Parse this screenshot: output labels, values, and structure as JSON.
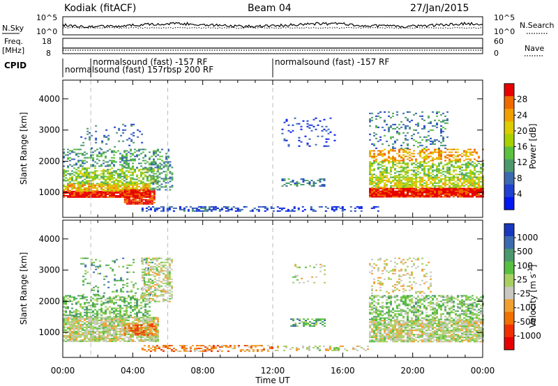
{
  "header": {
    "site": "Kodiak (fitACF)",
    "beam": "Beam 04",
    "date": "27/Jan/2015"
  },
  "summary": {
    "nsky_label": "N.Sky",
    "nsearch_label": "N.Search",
    "nsky_ticks": [
      "10^5",
      "10^0"
    ],
    "nsearch_ticks": [
      "10^5",
      "10^0"
    ],
    "freq_label": "Freq.",
    "freq_unit": "[MHz]",
    "freq_ticks": [
      "18",
      "8"
    ],
    "nave_label": "Nave",
    "nave_ticks": [
      "60",
      "0"
    ],
    "cpid_label": "CPID",
    "cpid_segments": [
      {
        "text": "normalsound (fast) 157rbsp 200 RF",
        "start_hour": 0.0
      },
      {
        "text": "normalsound (fast) -157 RF",
        "start_hour": 1.6
      },
      {
        "text": "normalsound (fast) -157 RF",
        "start_hour": 12.0
      }
    ]
  },
  "chart_data": [
    {
      "type": "heatmap",
      "name": "power-panel",
      "ylabel": "Slant Range [km]",
      "xlabel": "",
      "xlim": [
        0,
        24
      ],
      "ylim": [
        200,
        4600
      ],
      "yticks": [
        1000,
        2000,
        3000,
        4000
      ],
      "colorbar": {
        "label": "Power [dB]",
        "ticks": [
          "28",
          "24",
          "20",
          "16",
          "12",
          "8",
          "4"
        ],
        "colors": [
          "#e80000",
          "#f06a00",
          "#f0a000",
          "#dccc00",
          "#a8d000",
          "#5cc040",
          "#4c9a6c",
          "#3c6ab0",
          "#2040d0",
          "#0018f0"
        ]
      },
      "bands": [
        {
          "start": 0.0,
          "end": 5.0,
          "r0": 850,
          "r1": 1050,
          "v": 0.97,
          "d": 0.95
        },
        {
          "start": 0.0,
          "end": 5.0,
          "r0": 1050,
          "r1": 1300,
          "v": 0.7,
          "d": 0.85
        },
        {
          "start": 0.0,
          "end": 5.5,
          "r0": 1300,
          "r1": 1800,
          "v": 0.5,
          "d": 0.6
        },
        {
          "start": 0.0,
          "end": 6.0,
          "r0": 1800,
          "r1": 2400,
          "v": 0.35,
          "d": 0.35
        },
        {
          "start": 1.0,
          "end": 4.5,
          "r0": 2400,
          "r1": 3200,
          "v": 0.25,
          "d": 0.12
        },
        {
          "start": 3.5,
          "end": 5.2,
          "r0": 650,
          "r1": 1100,
          "v": 0.95,
          "d": 0.9
        },
        {
          "start": 5.0,
          "end": 6.2,
          "r0": 1100,
          "r1": 2000,
          "v": 0.35,
          "d": 0.4
        },
        {
          "start": 4.5,
          "end": 9.5,
          "r0": 400,
          "r1": 560,
          "v": 0.2,
          "d": 0.5
        },
        {
          "start": 9.0,
          "end": 18.0,
          "r0": 420,
          "r1": 560,
          "v": 0.15,
          "d": 0.35
        },
        {
          "start": 12.5,
          "end": 15.0,
          "r0": 1200,
          "r1": 1450,
          "v": 0.3,
          "d": 0.45
        },
        {
          "start": 12.5,
          "end": 15.5,
          "r0": 2500,
          "r1": 3400,
          "v": 0.15,
          "d": 0.12
        },
        {
          "start": 17.5,
          "end": 24.0,
          "r0": 850,
          "r1": 1150,
          "v": 0.95,
          "d": 0.95
        },
        {
          "start": 17.5,
          "end": 24.0,
          "r0": 1150,
          "r1": 1500,
          "v": 0.6,
          "d": 0.7
        },
        {
          "start": 17.5,
          "end": 24.0,
          "r0": 1500,
          "r1": 2000,
          "v": 0.5,
          "d": 0.55
        },
        {
          "start": 17.5,
          "end": 24.0,
          "r0": 2000,
          "r1": 2400,
          "v": 0.75,
          "d": 0.5
        },
        {
          "start": 17.5,
          "end": 22.0,
          "r0": 2400,
          "r1": 3600,
          "v": 0.3,
          "d": 0.2
        }
      ]
    },
    {
      "type": "heatmap",
      "name": "velocity-panel",
      "ylabel": "Slant Range [km]",
      "xlabel": "Time UT",
      "xlim": [
        0,
        24
      ],
      "ylim": [
        200,
        4600
      ],
      "yticks": [
        1000,
        2000,
        3000,
        4000
      ],
      "xticks": [
        "00:00",
        "04:00",
        "08:00",
        "12:00",
        "16:00",
        "20:00",
        "00:00"
      ],
      "xtick_hours": [
        0,
        4,
        8,
        12,
        16,
        20,
        24
      ],
      "colorbar": {
        "label": "Velocity [m s^-1]",
        "ticks": [
          "1000",
          "500",
          "100",
          "25",
          "-25",
          "-100",
          "-500",
          "-1000"
        ],
        "colors": [
          "#1838c0",
          "#3c6ab0",
          "#4c9a6c",
          "#58c040",
          "#a8d060",
          "#c8c8c0",
          "#f0a030",
          "#f07000",
          "#f03000",
          "#e80000"
        ]
      },
      "bands": [
        {
          "start": 0.0,
          "end": 5.5,
          "r0": 700,
          "r1": 1500,
          "v": 0.5,
          "d": 0.85
        },
        {
          "start": 0.0,
          "end": 5.0,
          "r0": 1500,
          "r1": 2200,
          "v": 0.65,
          "d": 0.5
        },
        {
          "start": 1.0,
          "end": 5.5,
          "r0": 2200,
          "r1": 3400,
          "v": 0.7,
          "d": 0.15
        },
        {
          "start": 3.5,
          "end": 5.3,
          "r0": 900,
          "r1": 1300,
          "v": 0.25,
          "d": 0.7
        },
        {
          "start": 4.5,
          "end": 6.2,
          "r0": 2000,
          "r1": 3400,
          "v": 0.5,
          "d": 0.5
        },
        {
          "start": 4.5,
          "end": 12.0,
          "r0": 400,
          "r1": 600,
          "v": 0.3,
          "d": 0.5
        },
        {
          "start": 12.0,
          "end": 17.5,
          "r0": 420,
          "r1": 580,
          "v": 0.5,
          "d": 0.4
        },
        {
          "start": 13.0,
          "end": 15.0,
          "r0": 1200,
          "r1": 1450,
          "v": 0.7,
          "d": 0.45
        },
        {
          "start": 13.0,
          "end": 15.0,
          "r0": 2600,
          "r1": 3200,
          "v": 0.5,
          "d": 0.12
        },
        {
          "start": 17.5,
          "end": 24.0,
          "r0": 700,
          "r1": 1400,
          "v": 0.5,
          "d": 0.85
        },
        {
          "start": 17.5,
          "end": 24.0,
          "r0": 1400,
          "r1": 2200,
          "v": 0.6,
          "d": 0.55
        },
        {
          "start": 17.5,
          "end": 21.0,
          "r0": 2200,
          "r1": 3400,
          "v": 0.45,
          "d": 0.2
        }
      ]
    }
  ]
}
